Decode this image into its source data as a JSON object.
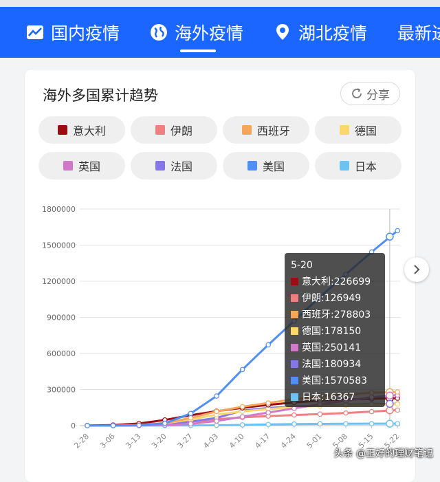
{
  "nav": {
    "tabs": [
      {
        "label": "国内疫情",
        "icon": "chart-trend-icon"
      },
      {
        "label": "海外疫情",
        "icon": "globe-icon"
      },
      {
        "label": "湖北疫情",
        "icon": "location-pin-icon"
      },
      {
        "label": "最新进"
      }
    ]
  },
  "card": {
    "title": "海外多国累计趋势",
    "share_label": "分享"
  },
  "legend": [
    {
      "name": "意大利",
      "color": "#9b0d12"
    },
    {
      "name": "伊朗",
      "color": "#f08080"
    },
    {
      "name": "西班牙",
      "color": "#f5a65b"
    },
    {
      "name": "德国",
      "color": "#fcd86a"
    },
    {
      "name": "英国",
      "color": "#d079c8"
    },
    {
      "name": "法国",
      "color": "#8677e8"
    },
    {
      "name": "美国",
      "color": "#4f8ff7"
    },
    {
      "name": "日本",
      "color": "#6ac2f5"
    }
  ],
  "chart_data": {
    "type": "line",
    "x": [
      "2-28",
      "3-06",
      "3-13",
      "3-20",
      "3-27",
      "4-03",
      "4-10",
      "4-17",
      "4-24",
      "5-01",
      "5-08",
      "5-15",
      "5-22"
    ],
    "ylim": [
      0,
      1800000
    ],
    "yticks": [
      0,
      300000,
      600000,
      900000,
      1200000,
      1500000,
      1800000
    ],
    "grid": true,
    "series": [
      {
        "name": "意大利",
        "color": "#9b0d12",
        "values": [
          900,
          4600,
          17700,
          47000,
          86500,
          119800,
          147600,
          172400,
          192900,
          207400,
          217200,
          223900,
          228000
        ]
      },
      {
        "name": "伊朗",
        "color": "#f08080",
        "values": [
          400,
          4700,
          11400,
          19600,
          32300,
          53200,
          68200,
          79500,
          88200,
          95600,
          104700,
          116600,
          129300
        ]
      },
      {
        "name": "西班牙",
        "color": "#f5a65b",
        "values": [
          30,
          400,
          5200,
          20400,
          64100,
          117700,
          157000,
          188000,
          219800,
          242900,
          260100,
          272600,
          280000
        ]
      },
      {
        "name": "德国",
        "color": "#fcd86a",
        "values": [
          60,
          670,
          3700,
          20000,
          50900,
          91200,
          118200,
          137400,
          154000,
          162800,
          169400,
          174500,
          179000
        ]
      },
      {
        "name": "英国",
        "color": "#d079c8",
        "values": [
          20,
          160,
          800,
          4000,
          14500,
          38200,
          73800,
          108700,
          143500,
          177400,
          206700,
          236700,
          254000
        ]
      },
      {
        "name": "法国",
        "color": "#8677e8",
        "values": [
          60,
          650,
          3600,
          12600,
          32900,
          64300,
          124900,
          147100,
          158500,
          167300,
          174800,
          178900,
          182000
        ]
      },
      {
        "name": "美国",
        "color": "#4f8ff7",
        "values": [
          60,
          300,
          2200,
          19100,
          101000,
          245600,
          466300,
          671400,
          869200,
          1069400,
          1257000,
          1443000,
          1620000
        ]
      },
      {
        "name": "日本",
        "color": "#6ac2f5",
        "values": [
          230,
          420,
          700,
          1000,
          1500,
          3100,
          6000,
          10000,
          13000,
          14500,
          15600,
          16100,
          16400
        ]
      }
    ],
    "tooltip": {
      "title": "5-20",
      "rows": [
        {
          "name": "意大利",
          "value": "226699",
          "color": "#9b0d12"
        },
        {
          "name": "伊朗",
          "value": "126949",
          "color": "#f08080"
        },
        {
          "name": "西班牙",
          "value": "278803",
          "color": "#f5a65b"
        },
        {
          "name": "德国",
          "value": "178150",
          "color": "#fcd86a"
        },
        {
          "name": "英国",
          "value": "250141",
          "color": "#d079c8"
        },
        {
          "name": "法国",
          "value": "180934",
          "color": "#8677e8"
        },
        {
          "name": "美国",
          "value": "1570583",
          "color": "#4f8ff7"
        },
        {
          "name": "日本",
          "value": "16367",
          "color": "#6ac2f5"
        }
      ]
    }
  },
  "watermark": "头条 @正好的理财笔记"
}
